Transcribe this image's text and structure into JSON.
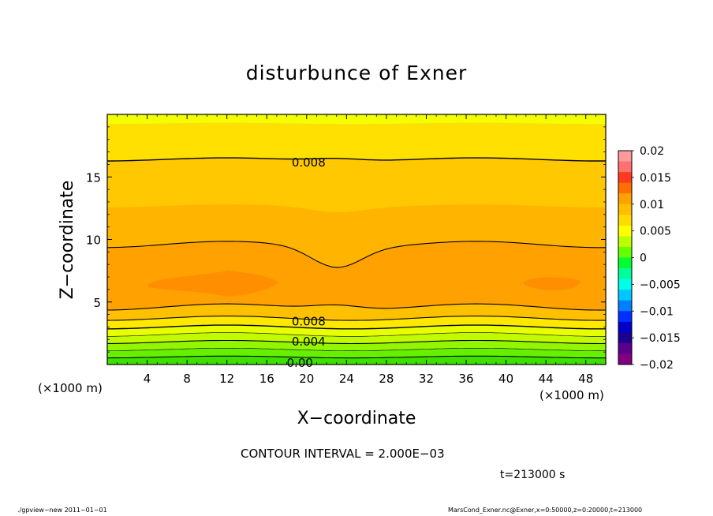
{
  "chart_data": {
    "type": "contour",
    "title": "disturbunce of Exner",
    "xlabel": "X−coordinate",
    "ylabel": "Z−coordinate",
    "x_unit": "(×1000 m)",
    "y_unit": "(×1000 m)",
    "xlim": [
      0,
      50
    ],
    "ylim": [
      0,
      20
    ],
    "xticks": [
      4,
      8,
      12,
      16,
      20,
      24,
      28,
      32,
      36,
      40,
      44,
      48
    ],
    "yticks": [
      5,
      10,
      15
    ],
    "contour_labels": [
      {
        "text": "0.008",
        "x": 18.5,
        "z": 16.2
      },
      {
        "text": "0.008",
        "x": 18.5,
        "z": 3.5
      },
      {
        "text": "0.004",
        "x": 18.5,
        "z": 1.9
      },
      {
        "text": "0.00",
        "x": 18.0,
        "z": 0.2
      }
    ],
    "colorbar": {
      "labels": [
        "0.02",
        "0.015",
        "0.01",
        "0.005",
        "0",
        "−0.005",
        "−0.01",
        "−0.015",
        "−0.02"
      ],
      "colors": [
        "#ff9a9a",
        "#ff7070",
        "#ff3a1e",
        "#ff6e00",
        "#ffa200",
        "#ffbe00",
        "#ffdc00",
        "#ffff00",
        "#bcff00",
        "#66ff00",
        "#00ff2e",
        "#00ff9a",
        "#00ffe6",
        "#00c8ff",
        "#0080ff",
        "#0030ff",
        "#0000c8",
        "#1c0090",
        "#5a008a",
        "#800080"
      ]
    },
    "contour_interval": "CONTOUR INTERVAL = 2.000E−03",
    "time": "t=213000 s"
  },
  "footer": {
    "left": "./gpview−new   2011−01−01",
    "right": "MarsCond_Exner.nc@Exner,x=0:50000,z=0:20000,t=213000"
  }
}
